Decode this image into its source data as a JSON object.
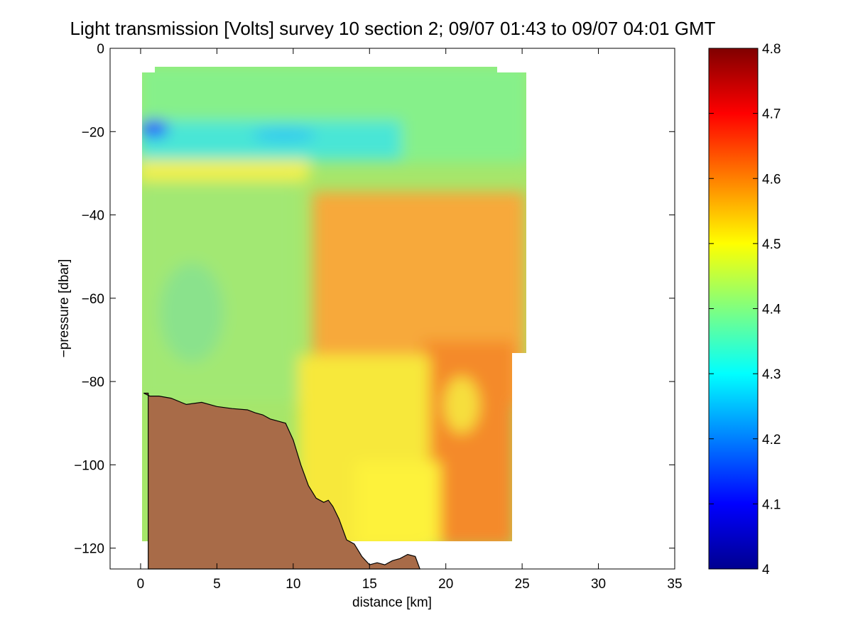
{
  "chart_data": {
    "type": "heatmap",
    "title": "Light transmission [Volts] survey 10 section 2; 09/07 01:43 to 09/07 04:01 GMT",
    "xlabel": "distance [km]",
    "ylabel": "−pressure [dbar]",
    "xlim": [
      -2,
      35
    ],
    "ylim": [
      -125,
      0
    ],
    "xticks": [
      0,
      5,
      10,
      15,
      20,
      25,
      30,
      35
    ],
    "yticks": [
      0,
      -20,
      -40,
      -60,
      -80,
      -100,
      -120
    ],
    "xtick_labels": [
      "0",
      "5",
      "10",
      "15",
      "20",
      "25",
      "30",
      "35"
    ],
    "ytick_labels": [
      "0",
      "−20",
      "−40",
      "−60",
      "−80",
      "−100",
      "−120"
    ],
    "colorbar": {
      "colormap": "jet",
      "range": [
        4.0,
        4.8
      ],
      "ticks": [
        4.0,
        4.1,
        4.2,
        4.3,
        4.4,
        4.5,
        4.6,
        4.7,
        4.8
      ],
      "tick_labels": [
        "4",
        "4.1",
        "4.2",
        "4.3",
        "4.4",
        "4.5",
        "4.6",
        "4.7",
        "4.8"
      ],
      "levels": 64
    },
    "field_summary": [
      {
        "region": "upper layer, x 0-25 km, pressure 5-30 dbar",
        "value": 4.42
      },
      {
        "region": "minimum near x 0-1 km, pressure 19 dbar",
        "value": 4.18
      },
      {
        "region": "west water column, x 0-10 km, pressure 30-85 dbar",
        "value": 4.45
      },
      {
        "region": "east water column, x 12-25 km, pressure 35-80 dbar",
        "value": 4.58
      },
      {
        "region": "deep region, x 10-24 km, pressure 85-120 dbar",
        "value": 4.52
      }
    ],
    "bathymetry": {
      "fill_color": "#a86b48",
      "x": [
        0.2,
        0.6,
        1.2,
        2.0,
        3.0,
        4.0,
        5.0,
        6.0,
        7.0,
        7.5,
        8.0,
        8.5,
        9.0,
        9.5,
        10.0,
        10.5,
        11.0,
        11.5,
        12.0,
        12.3,
        12.6,
        13.0,
        13.5,
        14.0,
        14.5,
        15.0,
        15.5,
        16.0,
        16.5,
        17.0,
        17.5,
        18.0,
        18.3
      ],
      "depth": [
        -82.8,
        -83.5,
        -83.5,
        -84.0,
        -85.5,
        -85.0,
        -86.0,
        -86.5,
        -86.8,
        -87.5,
        -88.0,
        -89.0,
        -89.5,
        -90.0,
        -94.0,
        -100.0,
        -105.0,
        -108.0,
        -109.0,
        -108.5,
        -110.0,
        -113.0,
        -118.0,
        -119.0,
        -122.0,
        -124.0,
        -123.5,
        -124.0,
        -123.0,
        -122.5,
        -121.5,
        -122.0,
        -125.0
      ]
    }
  }
}
